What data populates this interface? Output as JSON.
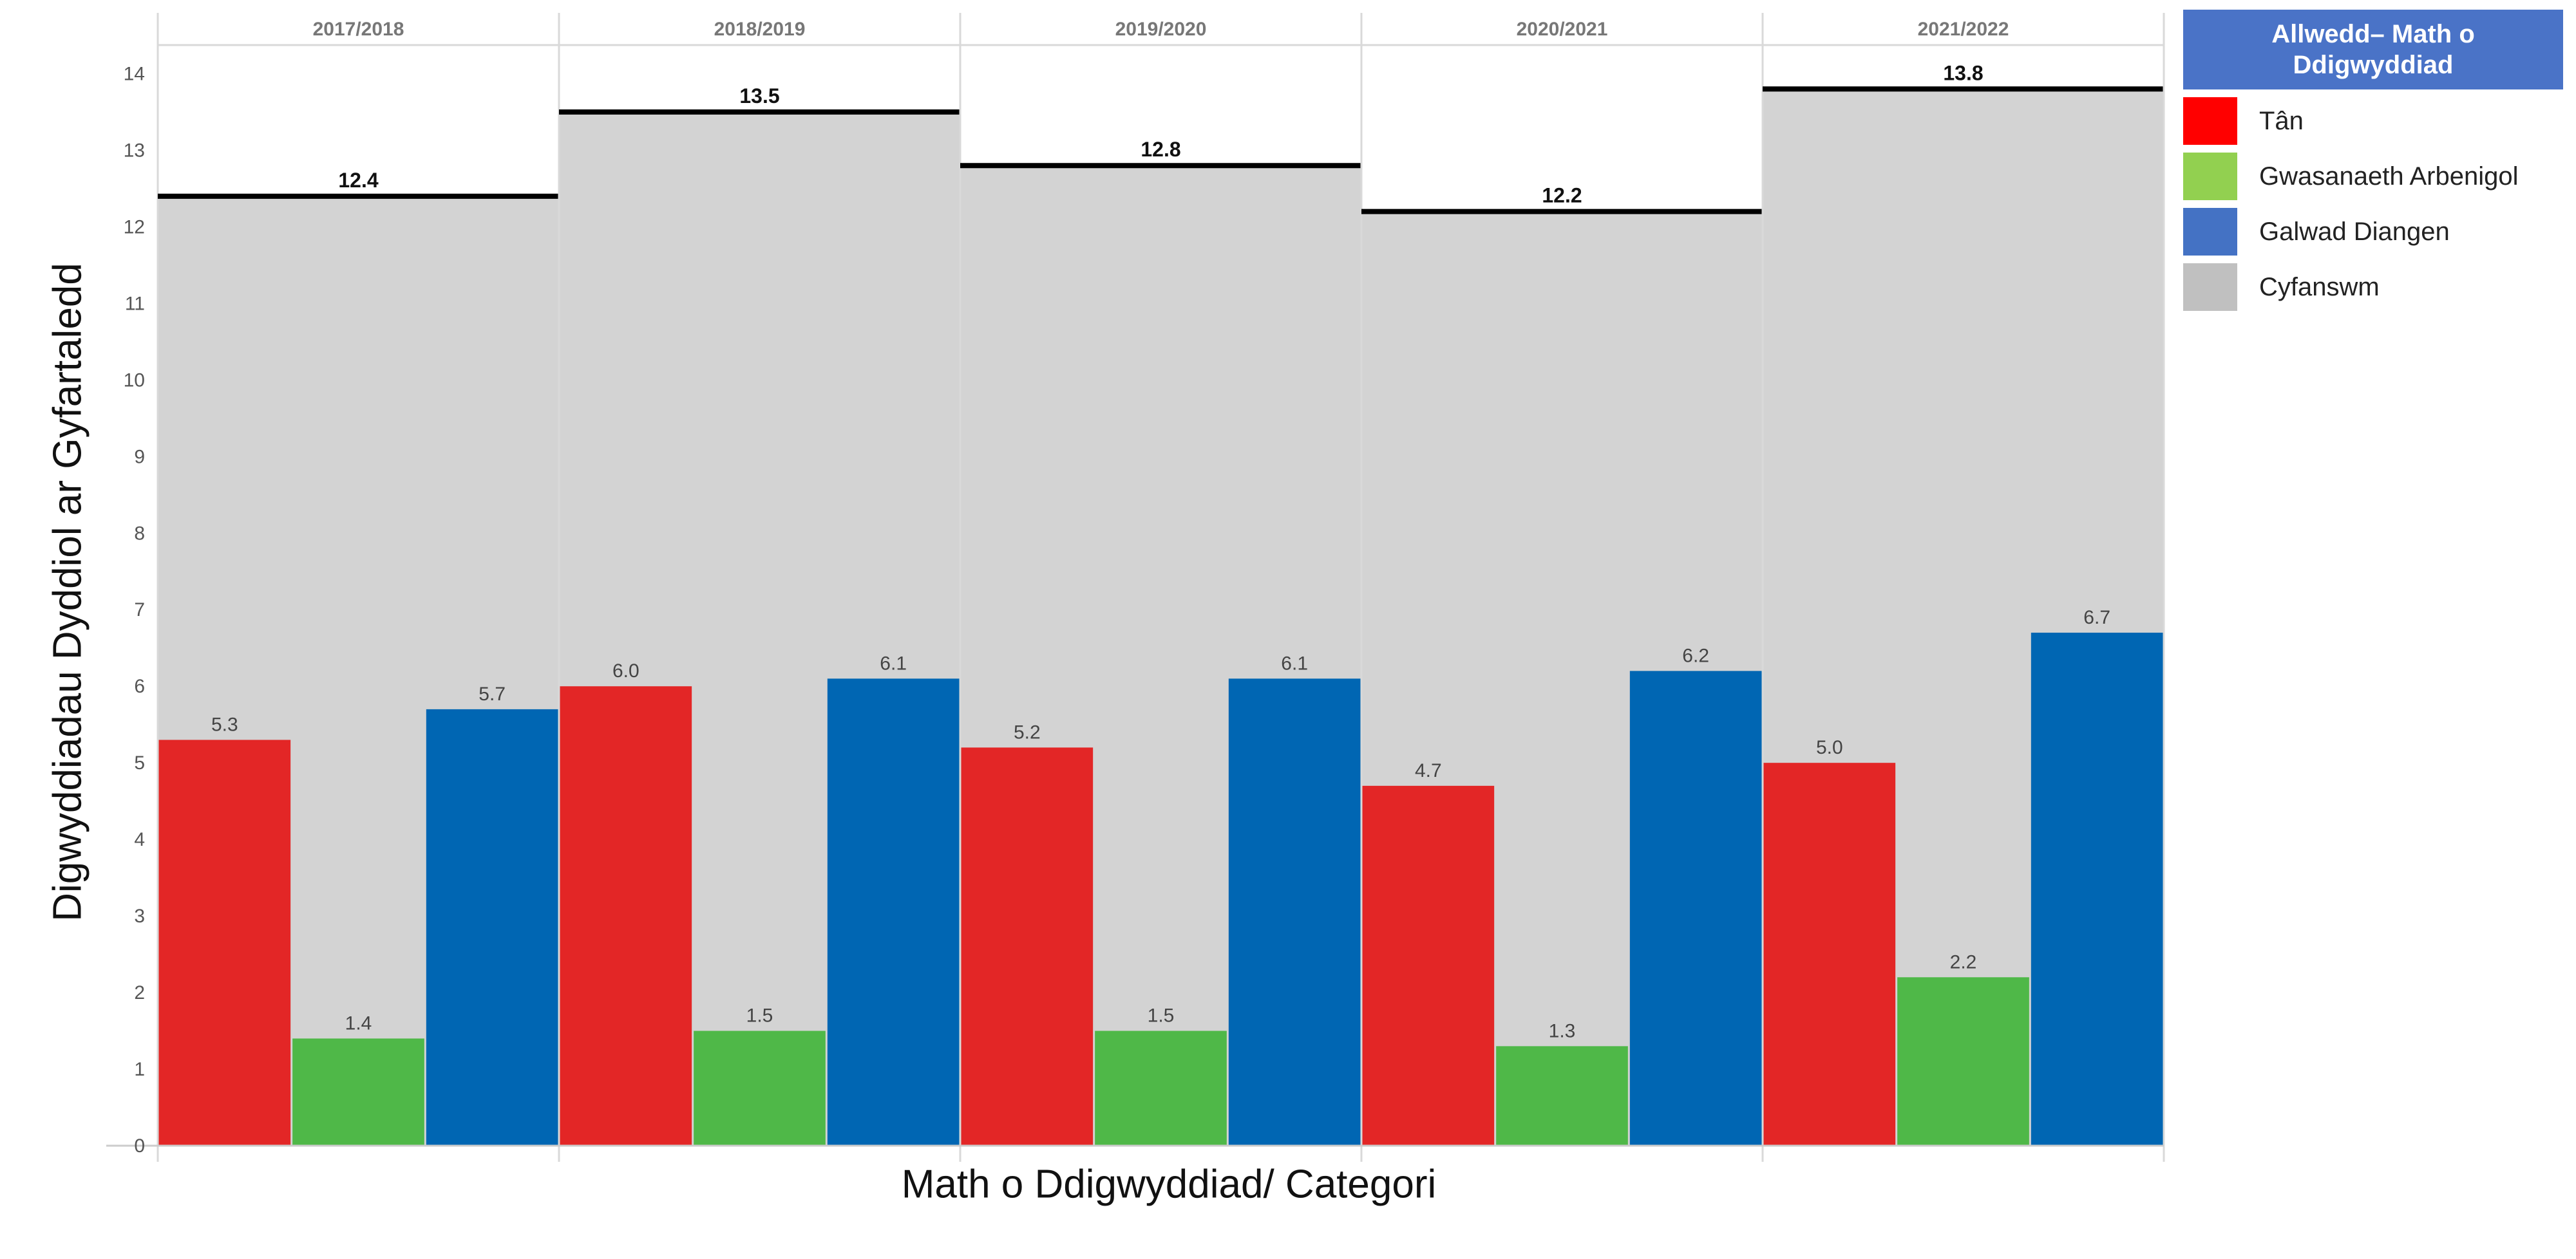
{
  "chart_data": {
    "type": "bar",
    "categories": [
      "2017/2018",
      "2018/2019",
      "2019/2020",
      "2020/2021",
      "2021/2022"
    ],
    "series": [
      {
        "name": "Tân",
        "color": "#e32626",
        "values": [
          5.3,
          6.0,
          5.2,
          4.7,
          5.0
        ],
        "labels": [
          "5.3",
          "6.0",
          "5.2",
          "4.7",
          "5.0"
        ]
      },
      {
        "name": "Gwasanaeth Arbenigol",
        "color": "#4fb848",
        "values": [
          1.4,
          1.5,
          1.5,
          1.3,
          2.2
        ],
        "labels": [
          "1.4",
          "1.5",
          "1.5",
          "1.3",
          "2.2"
        ]
      },
      {
        "name": "Galwad Diangen",
        "color": "#0066b3",
        "values": [
          5.7,
          6.1,
          6.1,
          6.2,
          6.7
        ],
        "labels": [
          "5.7",
          "6.1",
          "6.1",
          "6.2",
          "6.7"
        ]
      }
    ],
    "total": {
      "name": "Cyfanswm",
      "color": "#d3d3d3",
      "values": [
        12.4,
        13.5,
        12.8,
        12.2,
        13.8
      ],
      "labels": [
        "12.4",
        "13.5",
        "12.8",
        "12.2",
        "13.8"
      ]
    },
    "xlabel": "Math o Ddigwyddiad/ Categori",
    "ylabel": "Digwyddiadau Dyddiol ar Gyfartaledd",
    "ylim": [
      0,
      14.5
    ],
    "yticks": [
      0,
      1,
      2,
      3,
      4,
      5,
      6,
      7,
      8,
      9,
      10,
      11,
      12,
      13,
      14
    ],
    "grid": false,
    "legend_position": "top-right"
  },
  "legend": {
    "title": "Allwedd– Math o Ddigwyddiad",
    "items": [
      {
        "label": "Tân",
        "color": "#ff0000"
      },
      {
        "label": "Gwasanaeth Arbenigol",
        "color": "#92d050"
      },
      {
        "label": "Galwad Diangen",
        "color": "#4472c4"
      },
      {
        "label": "Cyfanswm",
        "color": "#c0c0c0"
      }
    ]
  }
}
